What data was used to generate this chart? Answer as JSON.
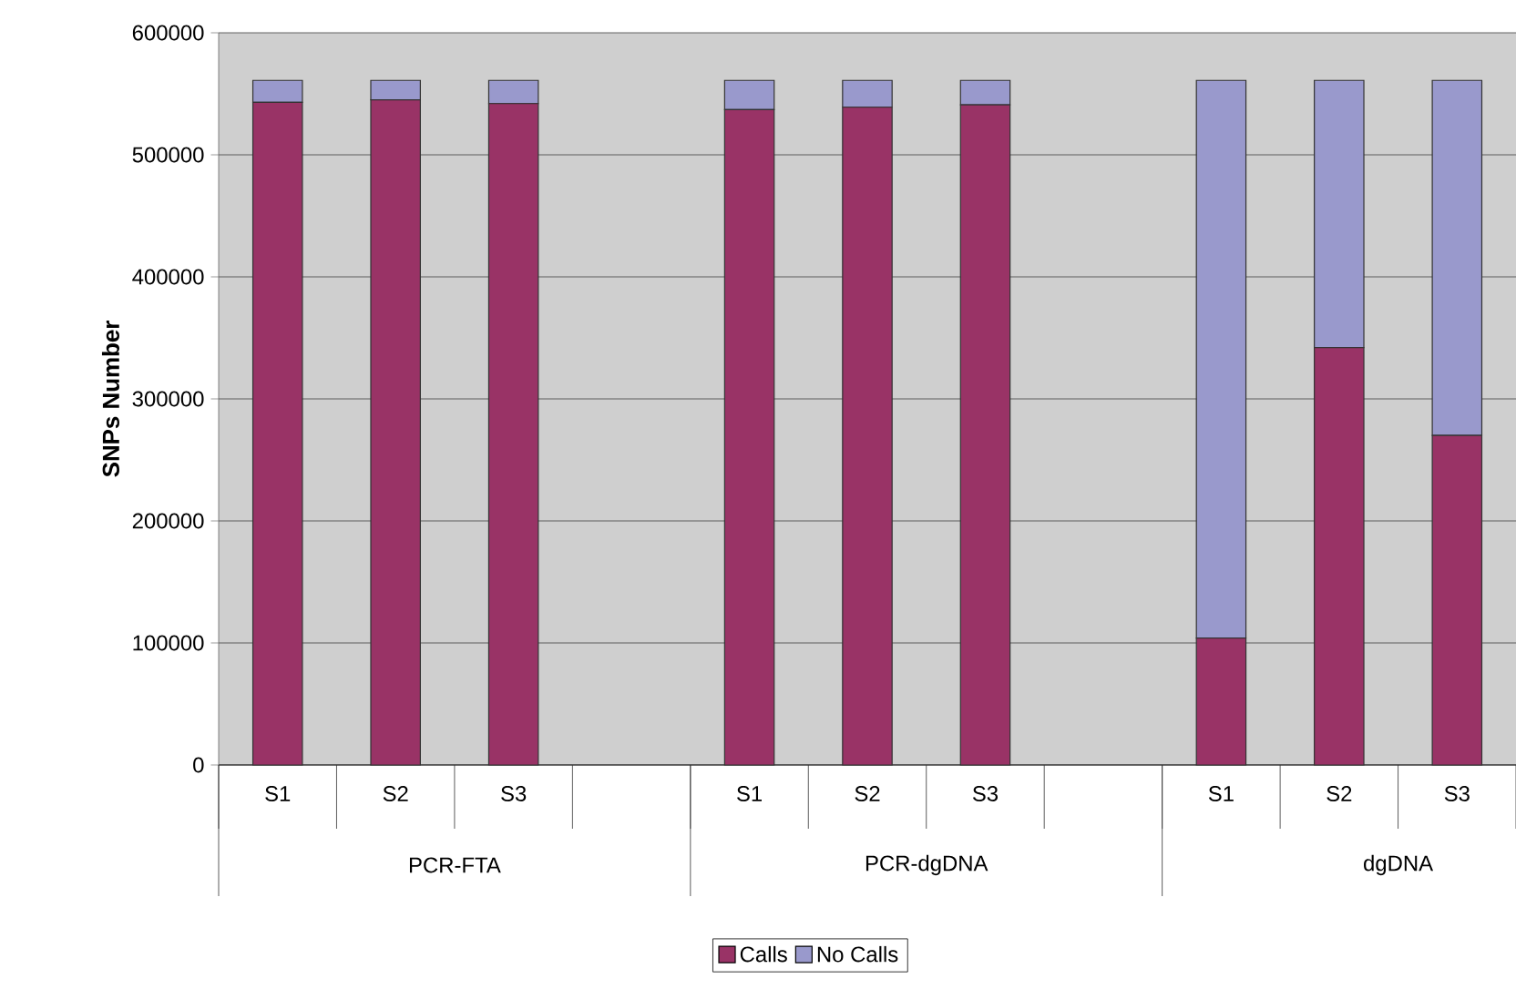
{
  "chart_data": {
    "type": "bar",
    "stacked": true,
    "ylabel": "SNPs Number",
    "categories": [
      "S1",
      "S2",
      "S3",
      null,
      "S1",
      "S2",
      "S3",
      null,
      "S1",
      "S2",
      "S3"
    ],
    "series": [
      {
        "name": "Calls",
        "color": "#993366",
        "values": [
          543000,
          545000,
          542000,
          null,
          537000,
          539000,
          541000,
          null,
          104000,
          342000,
          270000
        ]
      },
      {
        "name": "No Calls",
        "color": "#9999cc",
        "values": [
          18000,
          16000,
          19000,
          null,
          24000,
          22000,
          20000,
          null,
          457000,
          219000,
          291000
        ]
      }
    ],
    "annotations": [
      "PCR-FTA",
      "PCR-dgDNA",
      "dgDNA"
    ],
    "ylim": [
      0,
      600000
    ],
    "yticks": [
      0,
      100000,
      200000,
      300000,
      400000,
      500000,
      600000
    ],
    "grid": "y",
    "legend": "bottom"
  }
}
